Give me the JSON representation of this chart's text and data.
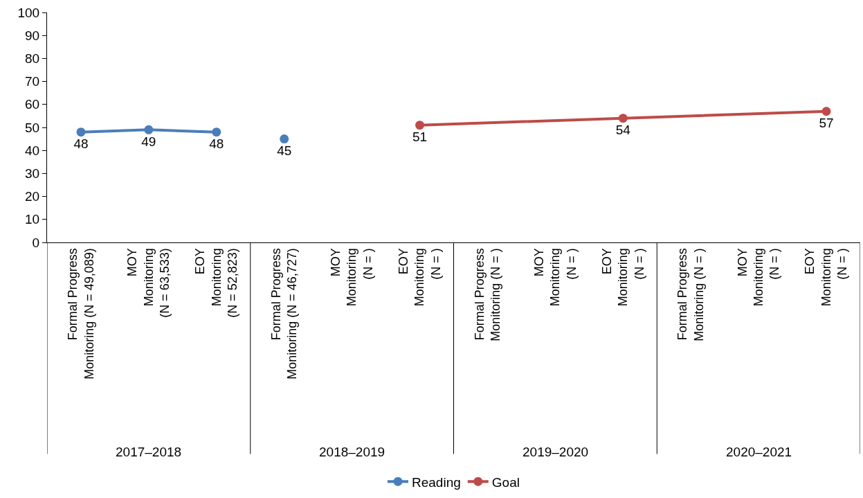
{
  "chart_data": {
    "type": "line",
    "categories": [
      "Formal Progress\nMonitoring (N = 49,089)",
      "MOY\nMonitoring\n(N = 63,533)",
      "EOY\nMonitoring\n(N = 52,823)",
      "Formal Progress\nMonitoring (N = 46,727)",
      "MOY\nMonitoring\n(N = )",
      "EOY\nMonitoring\n(N = )",
      "Formal Progress\nMonitoring (N = )",
      "MOY\nMonitoring\n(N = )",
      "EOY\nMonitoring\n(N = )",
      "Formal Progress\nMonitoring (N = )",
      "MOY\nMonitoring\n(N = )",
      "EOY\nMonitoring\n(N = )"
    ],
    "series": [
      {
        "name": "Reading",
        "color": "#4a7ebb",
        "values": [
          48,
          49,
          48,
          null,
          null,
          null,
          null,
          null,
          null,
          null,
          null,
          null
        ]
      },
      {
        "color": "#4a7ebb",
        "values": [
          null,
          null,
          null,
          45,
          null,
          null,
          null,
          null,
          null,
          null,
          null,
          null
        ]
      },
      {
        "name": "Goal",
        "color": "#be4b48",
        "values": [
          null,
          null,
          null,
          null,
          null,
          51,
          null,
          null,
          54,
          null,
          null,
          57
        ]
      }
    ],
    "annotations": [
      "2017–2018",
      "2018–2019",
      "2019–2020",
      "2020–2021"
    ],
    "ylim": [
      0,
      100
    ],
    "yticks": [
      0,
      10,
      20,
      30,
      40,
      50,
      60,
      70,
      80,
      90,
      100
    ],
    "legend": "bottom",
    "marker": "circle",
    "line_style": "solid",
    "data_labels": true
  }
}
